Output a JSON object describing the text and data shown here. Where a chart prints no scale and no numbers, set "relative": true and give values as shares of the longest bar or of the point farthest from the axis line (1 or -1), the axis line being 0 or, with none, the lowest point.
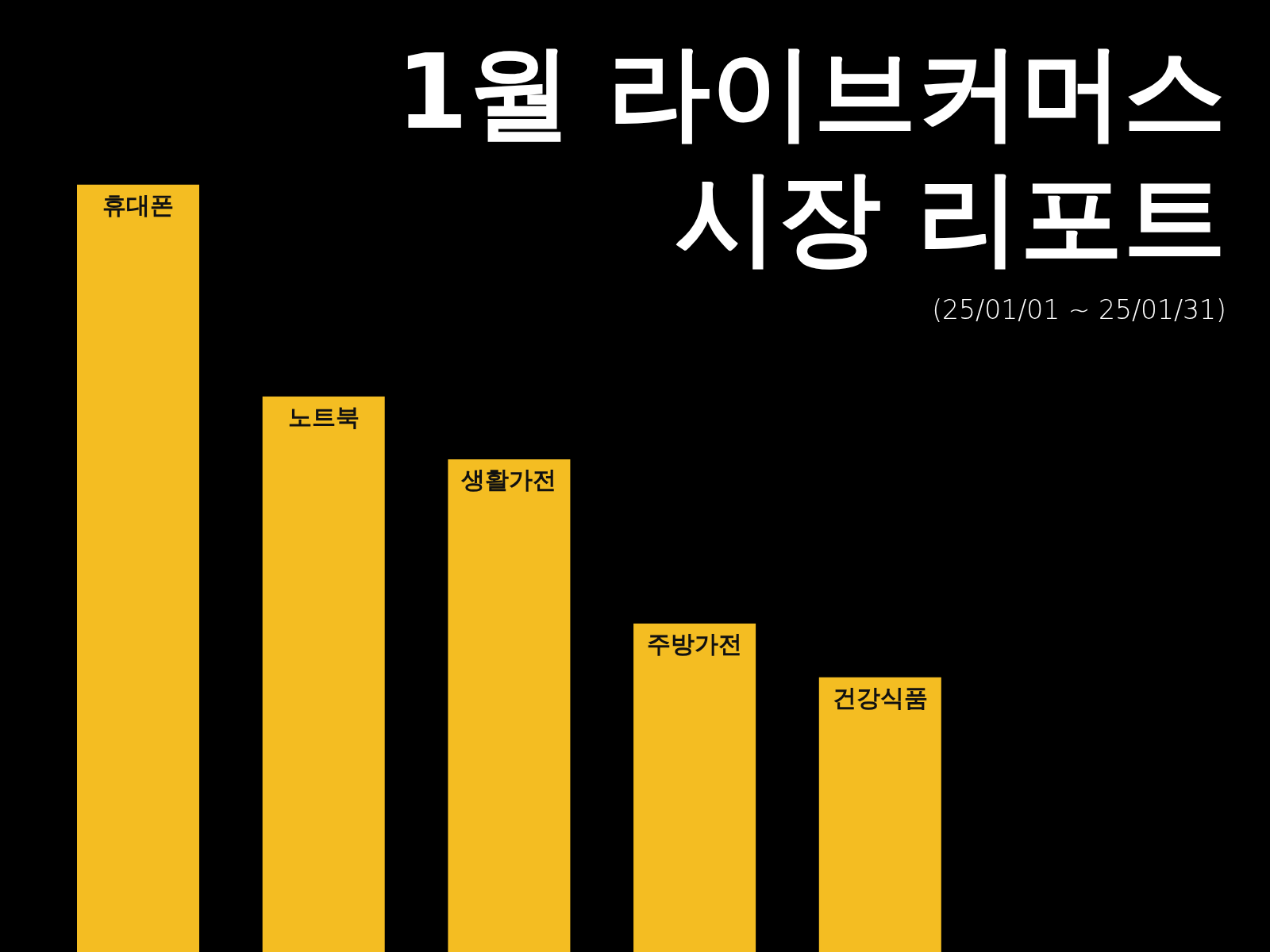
{
  "chart_data": {
    "type": "bar",
    "title": "1월 라이브커머스\n시장 리포트",
    "subtitle": "(25/01/01 ~ 25/01/31)",
    "categories": [
      "휴대폰",
      "노트북",
      "생활가전",
      "주방가전",
      "건강식품"
    ],
    "values": [
      1,
      0.724,
      0.642,
      0.428,
      0.358
    ],
    "color": "#f4bd22",
    "relative": true
  }
}
